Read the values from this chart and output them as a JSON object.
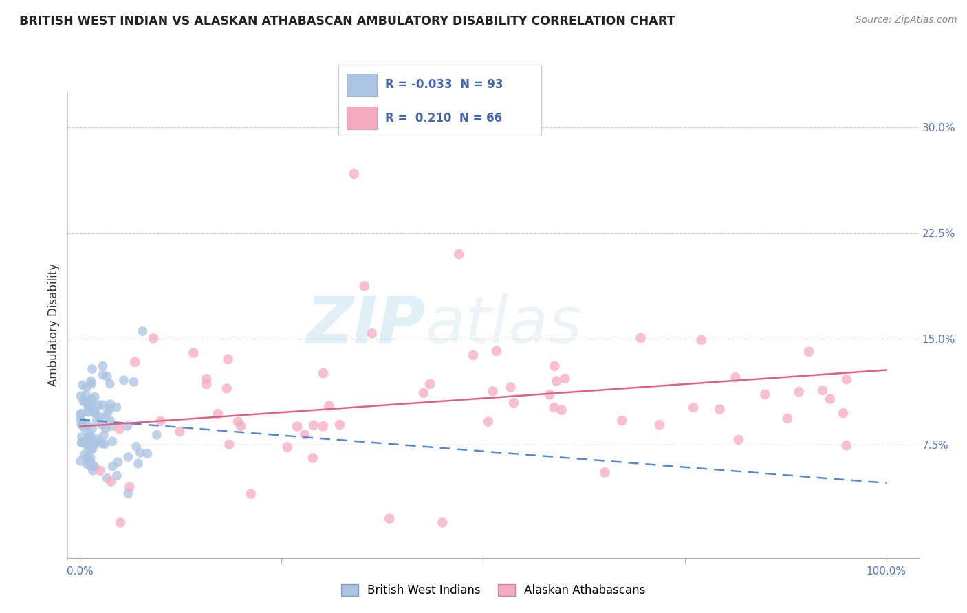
{
  "title": "BRITISH WEST INDIAN VS ALASKAN ATHABASCAN AMBULATORY DISABILITY CORRELATION CHART",
  "source": "Source: ZipAtlas.com",
  "ylabel": "Ambulatory Disability",
  "group1_name": "British West Indians",
  "group2_name": "Alaskan Athabascans",
  "group1_R": -0.033,
  "group1_N": 93,
  "group2_R": 0.21,
  "group2_N": 66,
  "group1_color": "#aac4e2",
  "group2_color": "#f5aabf",
  "group1_line_color": "#5588cc",
  "group2_line_color": "#e06080",
  "watermark_text": "ZIP",
  "watermark_text2": "atlas",
  "background_color": "#ffffff",
  "tick_color": "#5577bb",
  "grid_color": "#cccccc",
  "title_color": "#222222",
  "source_color": "#888888",
  "legend_text_color": "#4466aa",
  "y_ticks": [
    0.075,
    0.15,
    0.225,
    0.3
  ],
  "y_tick_labels": [
    "7.5%",
    "15.0%",
    "22.5%",
    "30.0%"
  ],
  "xlim": [
    -0.015,
    1.04
  ],
  "ylim": [
    -0.005,
    0.325
  ],
  "group1_line_start_y": 0.093,
  "group1_line_end_y": 0.048,
  "group2_line_start_y": 0.088,
  "group2_line_end_y": 0.128
}
